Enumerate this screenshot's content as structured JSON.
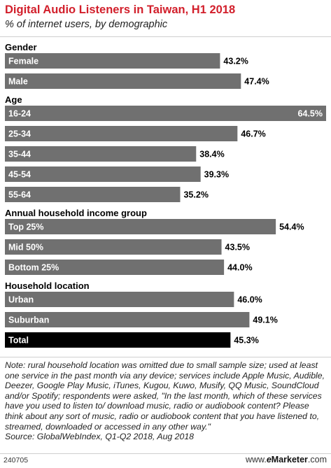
{
  "title": "Digital Audio Listeners in Taiwan, H1 2018",
  "subtitle": "% of internet users, by demographic",
  "chart_data": {
    "type": "bar",
    "orientation": "horizontal",
    "title": "Digital Audio Listeners in Taiwan, H1 2018",
    "subtitle": "% of internet users, by demographic",
    "value_suffix": "%",
    "xlim": [
      0,
      64.5
    ],
    "bar_color": "#707070",
    "total_color": "#000000",
    "groups": [
      {
        "name": "Gender",
        "items": [
          {
            "label": "Female",
            "value": 43.2
          },
          {
            "label": "Male",
            "value": 47.4
          }
        ]
      },
      {
        "name": "Age",
        "items": [
          {
            "label": "16-24",
            "value": 64.5
          },
          {
            "label": "25-34",
            "value": 46.7
          },
          {
            "label": "35-44",
            "value": 38.4
          },
          {
            "label": "45-54",
            "value": 39.3
          },
          {
            "label": "55-64",
            "value": 35.2
          }
        ]
      },
      {
        "name": "Annual household income group",
        "items": [
          {
            "label": "Top 25%",
            "value": 54.4
          },
          {
            "label": "Mid 50%",
            "value": 43.5
          },
          {
            "label": "Bottom 25%",
            "value": 44.0
          }
        ]
      },
      {
        "name": "Household location",
        "items": [
          {
            "label": "Urban",
            "value": 46.0
          },
          {
            "label": "Suburban",
            "value": 49.1
          }
        ]
      }
    ],
    "total": {
      "label": "Total",
      "value": 45.3
    }
  },
  "note": "Note: rural household location was omitted due to small sample size; used at least one service in the past month via any device; services include Apple Music, Audible, Deezer, Google Play Music, iTunes, Kugou, Kuwo, Musify, QQ Music, SoundCloud and/or Spotify; respondents were asked, \"In the last month, which of these services have you used to listen to/ download music, radio or audiobook content? Please think about any sort of music, radio or audiobook content that you have listened to, streamed, downloaded or accessed in any other way.\"",
  "source": "Source: GlobalWebIndex, Q1-Q2 2018, Aug 2018",
  "footer": {
    "chart_id": "240705",
    "brand_prefix": "www.",
    "brand_e": "e",
    "brand_name": "Marketer",
    "brand_suffix": ".com"
  }
}
